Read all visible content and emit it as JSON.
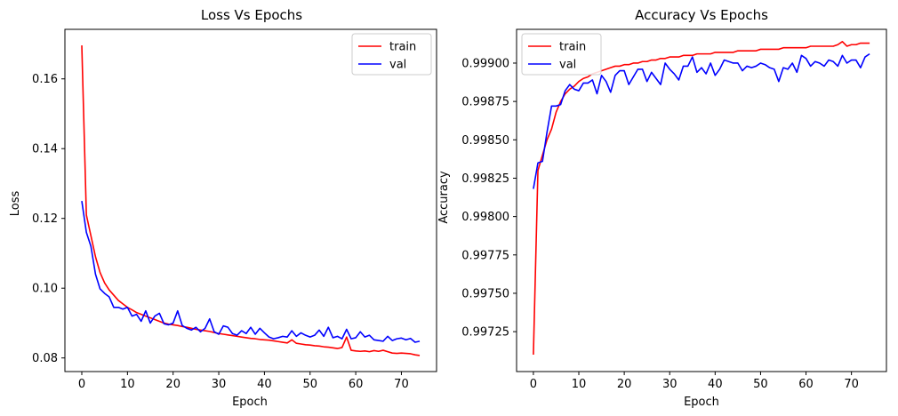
{
  "chart_data": [
    {
      "type": "line",
      "title": "Loss Vs Epochs",
      "xlabel": "Epoch",
      "ylabel": "Loss",
      "xlim": [
        -3.7,
        77.7
      ],
      "ylim": [
        0.0761,
        0.1742
      ],
      "xticks": [
        0,
        10,
        20,
        30,
        40,
        50,
        60,
        70
      ],
      "yticks": [
        0.08,
        0.1,
        0.12,
        0.14,
        0.16
      ],
      "ytick_labels": [
        "0.08",
        "0.10",
        "0.12",
        "0.14",
        "0.16"
      ],
      "grid": false,
      "legend_position": "top-right",
      "series": [
        {
          "name": "train",
          "color": "#ff0000",
          "values": [
            0.1696,
            0.121,
            0.115,
            0.109,
            0.1045,
            0.1015,
            0.0995,
            0.098,
            0.0965,
            0.0955,
            0.0945,
            0.0938,
            0.093,
            0.0925,
            0.092,
            0.0915,
            0.091,
            0.0905,
            0.09,
            0.0897,
            0.0895,
            0.0893,
            0.089,
            0.0888,
            0.0885,
            0.0882,
            0.088,
            0.0878,
            0.0876,
            0.0873,
            0.087,
            0.0868,
            0.0866,
            0.0864,
            0.0862,
            0.086,
            0.0858,
            0.0856,
            0.0855,
            0.0853,
            0.0852,
            0.0851,
            0.0849,
            0.0847,
            0.0845,
            0.0843,
            0.0852,
            0.0842,
            0.084,
            0.0838,
            0.0837,
            0.0835,
            0.0834,
            0.0832,
            0.0831,
            0.0829,
            0.0827,
            0.083,
            0.086,
            0.0822,
            0.082,
            0.0819,
            0.082,
            0.0818,
            0.0821,
            0.0819,
            0.0822,
            0.0818,
            0.0814,
            0.0813,
            0.0814,
            0.0813,
            0.0812,
            0.0809,
            0.0807
          ]
        },
        {
          "name": "val",
          "color": "#0000ff",
          "values": [
            0.125,
            0.116,
            0.112,
            0.104,
            0.0998,
            0.0985,
            0.0975,
            0.0945,
            0.0945,
            0.094,
            0.0945,
            0.092,
            0.0925,
            0.0905,
            0.0935,
            0.09,
            0.092,
            0.0928,
            0.0898,
            0.0895,
            0.09,
            0.0935,
            0.0893,
            0.0885,
            0.088,
            0.0888,
            0.0875,
            0.0885,
            0.0912,
            0.0875,
            0.0868,
            0.0892,
            0.0888,
            0.087,
            0.0865,
            0.0878,
            0.087,
            0.0888,
            0.0868,
            0.0885,
            0.0872,
            0.086,
            0.0855,
            0.0858,
            0.0862,
            0.086,
            0.0878,
            0.0862,
            0.0872,
            0.0865,
            0.086,
            0.0865,
            0.088,
            0.0862,
            0.0888,
            0.0858,
            0.0862,
            0.0855,
            0.0882,
            0.0855,
            0.0858,
            0.0875,
            0.086,
            0.0865,
            0.0852,
            0.085,
            0.0848,
            0.0862,
            0.085,
            0.0855,
            0.0857,
            0.0852,
            0.0856,
            0.0845,
            0.0848
          ]
        }
      ]
    },
    {
      "type": "line",
      "title": "Accuracy Vs Epochs",
      "xlabel": "Epoch",
      "ylabel": "Accuracy",
      "xlim": [
        -3.7,
        77.7
      ],
      "ylim": [
        0.99699,
        0.99922
      ],
      "xticks": [
        0,
        10,
        20,
        30,
        40,
        50,
        60,
        70
      ],
      "yticks": [
        0.99725,
        0.9975,
        0.99775,
        0.998,
        0.99825,
        0.9985,
        0.99875,
        0.999
      ],
      "ytick_labels": [
        "0.99725",
        "0.99750",
        "0.99775",
        "0.99800",
        "0.99825",
        "0.99850",
        "0.99875",
        "0.99900"
      ],
      "grid": false,
      "legend_position": "top-left",
      "series": [
        {
          "name": "train",
          "color": "#ff0000",
          "values": [
            0.9971,
            0.9983,
            0.9984,
            0.9985,
            0.99857,
            0.99868,
            0.99875,
            0.9988,
            0.99883,
            0.99885,
            0.99888,
            0.9989,
            0.99891,
            0.99893,
            0.99894,
            0.99895,
            0.99896,
            0.99897,
            0.99898,
            0.99898,
            0.99899,
            0.99899,
            0.999,
            0.999,
            0.99901,
            0.99901,
            0.99902,
            0.99902,
            0.99903,
            0.99903,
            0.99904,
            0.99904,
            0.99904,
            0.99905,
            0.99905,
            0.99905,
            0.99906,
            0.99906,
            0.99906,
            0.99906,
            0.99907,
            0.99907,
            0.99907,
            0.99907,
            0.99907,
            0.99908,
            0.99908,
            0.99908,
            0.99908,
            0.99908,
            0.99909,
            0.99909,
            0.99909,
            0.99909,
            0.99909,
            0.9991,
            0.9991,
            0.9991,
            0.9991,
            0.9991,
            0.9991,
            0.99911,
            0.99911,
            0.99911,
            0.99911,
            0.99911,
            0.99911,
            0.99912,
            0.99914,
            0.99911,
            0.99912,
            0.99912,
            0.99913,
            0.99913,
            0.99913
          ]
        },
        {
          "name": "val",
          "color": "#0000ff",
          "values": [
            0.99818,
            0.99835,
            0.99836,
            0.99855,
            0.99872,
            0.99872,
            0.99873,
            0.99882,
            0.99886,
            0.99883,
            0.99882,
            0.99887,
            0.99887,
            0.99889,
            0.9988,
            0.99892,
            0.99888,
            0.99881,
            0.99892,
            0.99895,
            0.99895,
            0.99886,
            0.99891,
            0.99896,
            0.99896,
            0.99888,
            0.99894,
            0.9989,
            0.99886,
            0.999,
            0.99896,
            0.99893,
            0.99889,
            0.99898,
            0.99898,
            0.99904,
            0.99894,
            0.99897,
            0.99893,
            0.999,
            0.99892,
            0.99896,
            0.99902,
            0.99901,
            0.999,
            0.999,
            0.99895,
            0.99898,
            0.99897,
            0.99898,
            0.999,
            0.99899,
            0.99897,
            0.99896,
            0.99888,
            0.99897,
            0.99896,
            0.999,
            0.99894,
            0.99905,
            0.99903,
            0.99898,
            0.99901,
            0.999,
            0.99898,
            0.99902,
            0.99901,
            0.99898,
            0.99905,
            0.999,
            0.99902,
            0.99902,
            0.99897,
            0.99904,
            0.99906
          ]
        }
      ]
    }
  ]
}
